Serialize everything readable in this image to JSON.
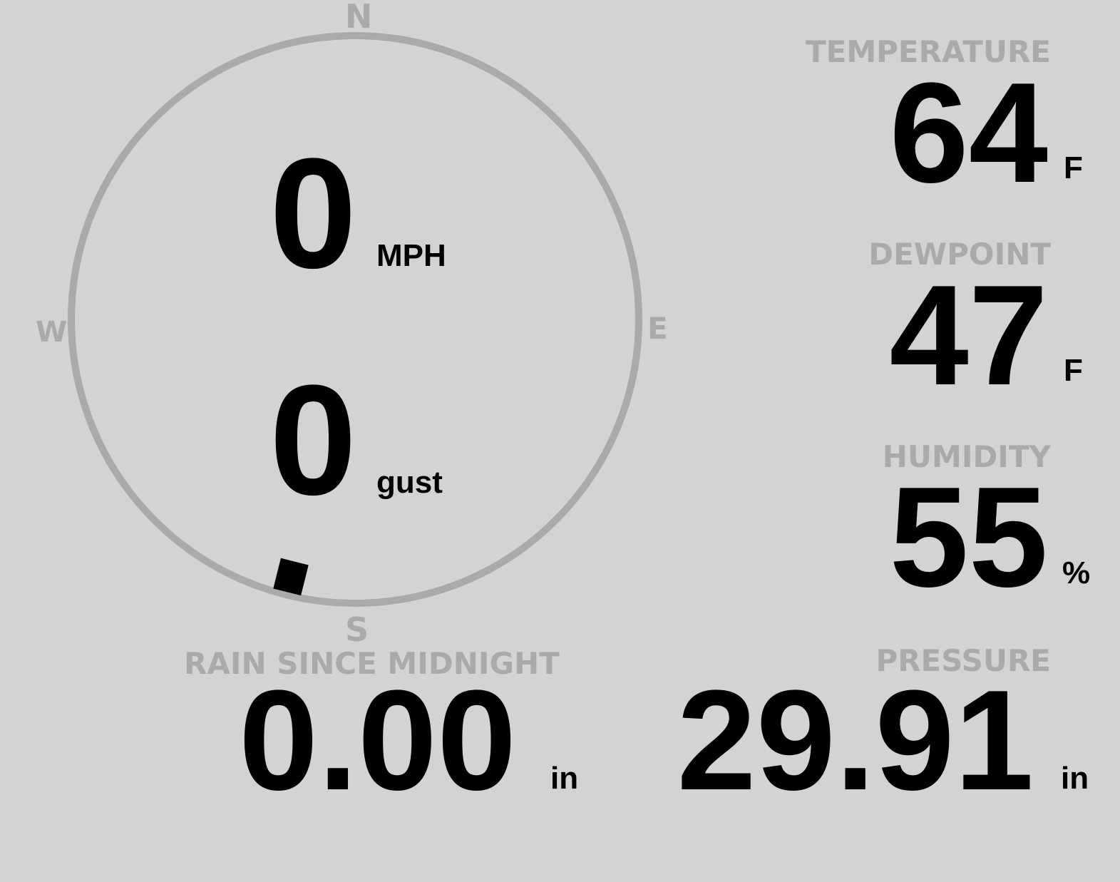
{
  "wind": {
    "compass": {
      "north": "N",
      "east": "E",
      "south": "S",
      "west": "W"
    },
    "speed": "0",
    "speed_unit": "MPH",
    "gust": "0",
    "gust_unit": "gust",
    "direction_deg": 194,
    "ring_color": "#aaaaaa",
    "marker_color": "#000000"
  },
  "temperature": {
    "label": "TEMPERATURE",
    "value": "64",
    "unit": "F"
  },
  "dewpoint": {
    "label": "DEWPOINT",
    "value": "47",
    "unit": "F"
  },
  "humidity": {
    "label": "HUMIDITY",
    "value": "55",
    "unit": "%"
  },
  "rain": {
    "label": "RAIN SINCE MIDNIGHT",
    "value": "0.00",
    "unit": "in"
  },
  "pressure": {
    "label": "PRESSURE",
    "value": "29.91",
    "unit": "in"
  },
  "colors": {
    "background": "#d3d3d3",
    "label": "#aaaaaa",
    "value": "#000000"
  }
}
